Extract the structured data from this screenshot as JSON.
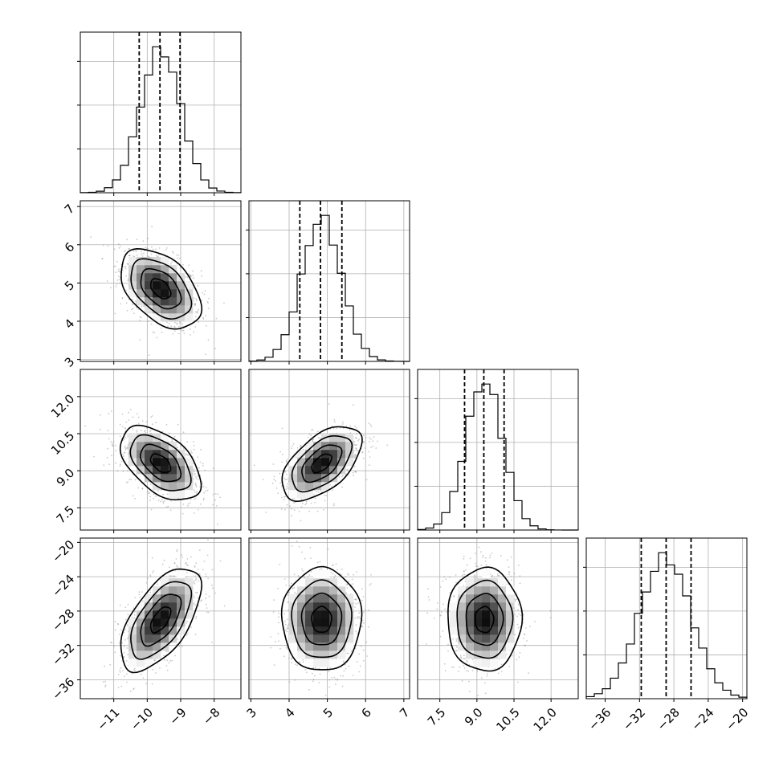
{
  "chart_data": {
    "type": "corner",
    "title": "",
    "variables": [
      {
        "index": 0,
        "range": [
          -12.0,
          -7.2
        ],
        "ticks": [
          {
            "value": -11,
            "label": "−11"
          },
          {
            "value": -10,
            "label": "−10"
          },
          {
            "value": -9,
            "label": "−9"
          },
          {
            "value": -8,
            "label": "−8"
          }
        ]
      },
      {
        "index": 1,
        "range": [
          2.95,
          7.15
        ],
        "ticks": [
          {
            "value": 3,
            "label": "3"
          },
          {
            "value": 4,
            "label": "4"
          },
          {
            "value": 5,
            "label": "5"
          },
          {
            "value": 6,
            "label": "6"
          },
          {
            "value": 7,
            "label": "7"
          }
        ]
      },
      {
        "index": 2,
        "range": [
          6.6,
          13.1
        ],
        "ticks": [
          {
            "value": 7.5,
            "label": "7.5"
          },
          {
            "value": 9.0,
            "label": "9.0"
          },
          {
            "value": 10.5,
            "label": "10.5"
          },
          {
            "value": 12.0,
            "label": "12.0"
          }
        ]
      },
      {
        "index": 3,
        "range": [
          -38.2,
          -19.5
        ],
        "ticks": [
          {
            "value": -36,
            "label": "−36"
          },
          {
            "value": -32,
            "label": "−32"
          },
          {
            "value": -28,
            "label": "−28"
          },
          {
            "value": -24,
            "label": "−24"
          },
          {
            "value": -20,
            "label": "−20"
          }
        ]
      }
    ],
    "means": [
      -9.6,
      4.85,
      9.3,
      -29.0
    ],
    "stds": [
      0.6,
      0.52,
      0.75,
      3.0
    ],
    "correlation": [
      [
        1.0,
        -0.45,
        -0.5,
        0.6
      ],
      [
        -0.45,
        1.0,
        0.55,
        0.0
      ],
      [
        -0.5,
        0.55,
        1.0,
        0.0
      ],
      [
        0.6,
        0.0,
        0.0,
        1.0
      ]
    ],
    "quantiles": [
      [
        -10.24,
        -9.62,
        -9.02
      ],
      [
        4.28,
        4.82,
        5.38
      ],
      [
        8.5,
        9.28,
        10.1
      ],
      [
        -31.8,
        -28.9,
        -26.0
      ]
    ],
    "histogram_bins": 20,
    "contour_levels": 4,
    "grid": true,
    "legend": "none"
  }
}
